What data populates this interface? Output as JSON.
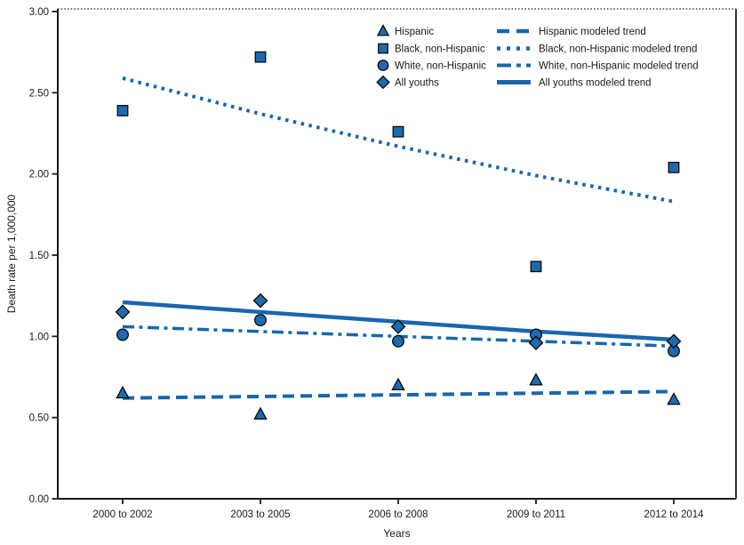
{
  "chart_data": {
    "type": "scatter",
    "title": "",
    "xlabel": "Years",
    "ylabel": "Death rate per 1,000,000",
    "ylim": [
      0,
      3
    ],
    "ytick_step": 0.5,
    "ytick_labels": [
      "0.00",
      "0.50",
      "1.00",
      "1.50",
      "2.00",
      "2.50",
      "3.00"
    ],
    "grid": false,
    "legend_position": "top-center-two-columns",
    "categories": [
      "2000 to 2002",
      "2003 to 2005",
      "2006 to 2008",
      "2009 to 2011",
      "2012 to 2014"
    ],
    "series": [
      {
        "name": "Hispanic",
        "marker": "triangle",
        "values": [
          0.65,
          0.52,
          0.7,
          0.73,
          0.61
        ]
      },
      {
        "name": "Black, non-Hispanic",
        "marker": "square",
        "values": [
          2.39,
          2.72,
          2.26,
          1.43,
          2.04
        ]
      },
      {
        "name": "White, non-Hispanic",
        "marker": "circle",
        "values": [
          1.01,
          1.1,
          0.97,
          1.01,
          0.91
        ]
      },
      {
        "name": "All youths",
        "marker": "diamond",
        "values": [
          1.15,
          1.22,
          1.06,
          0.96,
          0.97
        ]
      }
    ],
    "trend_series": [
      {
        "name": "Hispanic modeled trend",
        "style": "dashed",
        "values": [
          0.62,
          0.63,
          0.64,
          0.65,
          0.66
        ]
      },
      {
        "name": "Black, non-Hispanic modeled trend",
        "style": "dotted",
        "values": [
          2.59,
          2.37,
          2.17,
          1.99,
          1.83
        ]
      },
      {
        "name": "White, non-Hispanic modeled trend",
        "style": "dashdot",
        "values": [
          1.06,
          1.03,
          1.0,
          0.97,
          0.94
        ]
      },
      {
        "name": "All youths modeled trend",
        "style": "solid",
        "values": [
          1.21,
          1.15,
          1.09,
          1.03,
          0.98
        ]
      }
    ],
    "colors": {
      "accent_blue": "#1966ad",
      "marker_fill": "#1d6ab0",
      "marker_stroke": "#0a0a0a",
      "axis": "#1a1a1a",
      "text": "#1a1a1a"
    }
  }
}
